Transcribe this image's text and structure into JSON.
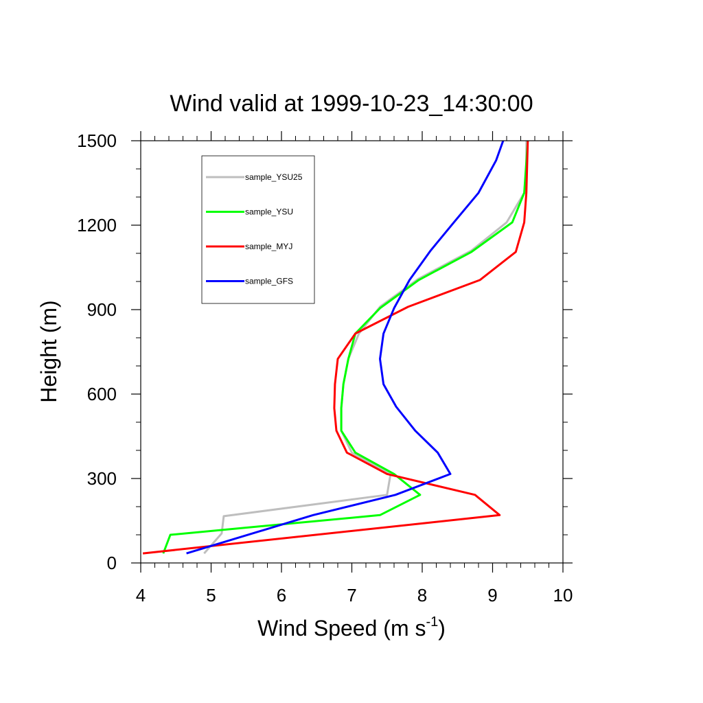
{
  "chart_data": {
    "type": "line",
    "title": "Wind valid at 1999-10-23_14:30:00",
    "xlabel": "Wind Speed (m s",
    "xlabel_sup": "-1",
    "xlabel_close": ")",
    "ylabel": "Height (m)",
    "xlim": [
      4,
      10
    ],
    "ylim": [
      0,
      1500
    ],
    "x_ticks": [
      4,
      5,
      6,
      7,
      8,
      9,
      10
    ],
    "y_ticks": [
      0,
      300,
      600,
      900,
      1200,
      1500
    ],
    "legend_position": "top-left",
    "series": [
      {
        "name": "sample_YSU25",
        "color": "#bebebe",
        "points": [
          [
            4.9,
            34
          ],
          [
            5.15,
            105
          ],
          [
            5.18,
            166
          ],
          [
            7.5,
            242
          ],
          [
            7.55,
            316
          ],
          [
            7.0,
            392
          ],
          [
            6.85,
            470
          ],
          [
            6.85,
            550
          ],
          [
            6.88,
            635
          ],
          [
            6.95,
            725
          ],
          [
            7.1,
            815
          ],
          [
            7.4,
            910
          ],
          [
            7.95,
            1010
          ],
          [
            8.7,
            1110
          ],
          [
            9.2,
            1210
          ],
          [
            9.45,
            1315
          ],
          [
            9.48,
            1400
          ],
          [
            9.48,
            1500
          ]
        ]
      },
      {
        "name": "sample_YSU",
        "color": "#00ff00",
        "points": [
          [
            4.32,
            34
          ],
          [
            4.42,
            100
          ],
          [
            7.4,
            170
          ],
          [
            7.97,
            242
          ],
          [
            7.6,
            316
          ],
          [
            7.05,
            392
          ],
          [
            6.85,
            470
          ],
          [
            6.85,
            550
          ],
          [
            6.88,
            635
          ],
          [
            6.95,
            725
          ],
          [
            7.05,
            815
          ],
          [
            7.4,
            905
          ],
          [
            7.95,
            1005
          ],
          [
            8.7,
            1105
          ],
          [
            9.28,
            1210
          ],
          [
            9.45,
            1315
          ],
          [
            9.5,
            1500
          ]
        ]
      },
      {
        "name": "sample_MYJ",
        "color": "#ff0000",
        "points": [
          [
            4.03,
            34
          ],
          [
            9.1,
            170
          ],
          [
            8.75,
            242
          ],
          [
            7.5,
            316
          ],
          [
            6.93,
            392
          ],
          [
            6.78,
            470
          ],
          [
            6.75,
            550
          ],
          [
            6.76,
            635
          ],
          [
            6.8,
            725
          ],
          [
            7.05,
            815
          ],
          [
            7.8,
            910
          ],
          [
            8.82,
            1005
          ],
          [
            9.33,
            1105
          ],
          [
            9.45,
            1210
          ],
          [
            9.48,
            1315
          ],
          [
            9.5,
            1500
          ]
        ]
      },
      {
        "name": "sample_GFS",
        "color": "#0000ff",
        "points": [
          [
            4.65,
            34
          ],
          [
            6.45,
            170
          ],
          [
            7.62,
            242
          ],
          [
            8.4,
            316
          ],
          [
            8.22,
            392
          ],
          [
            7.9,
            470
          ],
          [
            7.63,
            555
          ],
          [
            7.45,
            635
          ],
          [
            7.4,
            725
          ],
          [
            7.45,
            815
          ],
          [
            7.6,
            905
          ],
          [
            7.82,
            1005
          ],
          [
            8.12,
            1110
          ],
          [
            8.45,
            1210
          ],
          [
            8.8,
            1315
          ],
          [
            9.05,
            1430
          ],
          [
            9.15,
            1500
          ]
        ]
      }
    ]
  }
}
